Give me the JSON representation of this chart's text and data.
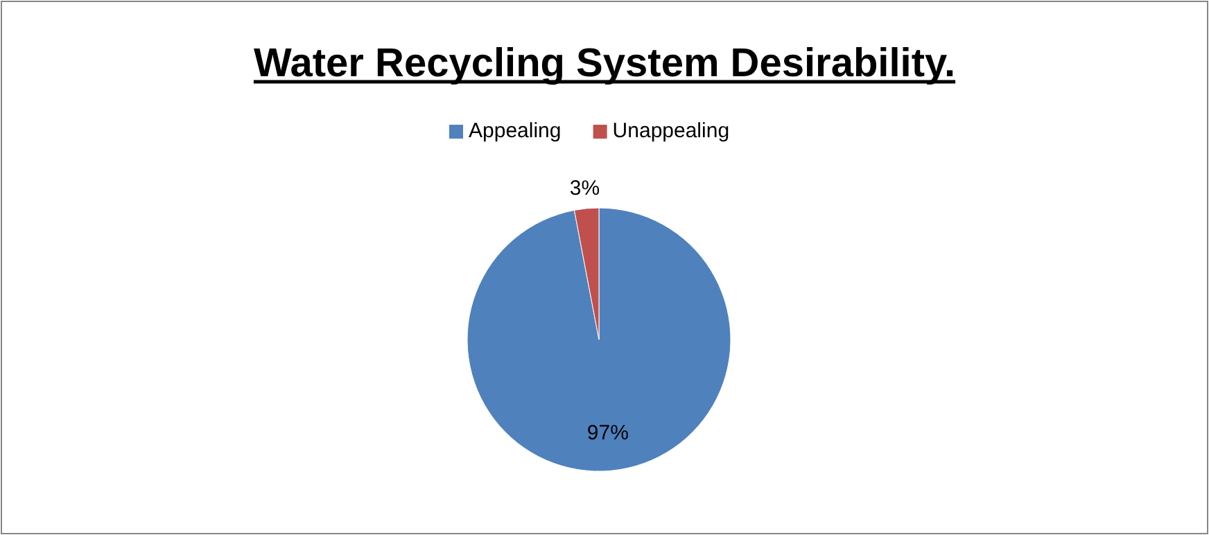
{
  "chart_data": {
    "type": "pie",
    "title": "Water Recycling System Desirability.",
    "categories": [
      "Appealing",
      "Unappealing"
    ],
    "values": [
      97,
      3
    ],
    "value_labels": [
      "97%",
      "3%"
    ],
    "colors": [
      "#4f81bd",
      "#c0504d"
    ],
    "legend": "top"
  }
}
